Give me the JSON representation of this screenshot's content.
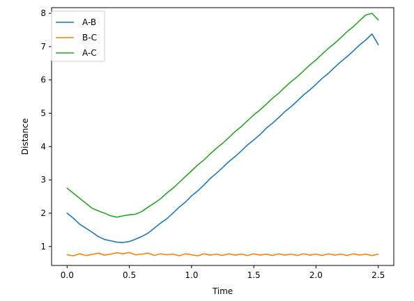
{
  "chart_data": {
    "type": "line",
    "title": "",
    "xlabel": "Time",
    "ylabel": "Distance",
    "xlim": [
      -0.125,
      2.625
    ],
    "ylim": [
      0.43,
      8.17
    ],
    "xticks": [
      0.0,
      0.5,
      1.0,
      1.5,
      2.0,
      2.5
    ],
    "xtick_labels": [
      "0.0",
      "0.5",
      "1.0",
      "1.5",
      "2.0",
      "2.5"
    ],
    "yticks": [
      1,
      2,
      3,
      4,
      5,
      6,
      7,
      8
    ],
    "ytick_labels": [
      "1",
      "2",
      "3",
      "4",
      "5",
      "6",
      "7",
      "8"
    ],
    "grid": false,
    "legend_position": "top-left",
    "series": [
      {
        "name": "A-B",
        "color": "#1f77b4",
        "x": [
          0.0,
          0.05,
          0.1,
          0.15,
          0.2,
          0.25,
          0.3,
          0.35,
          0.4,
          0.45,
          0.5,
          0.55,
          0.6,
          0.65,
          0.7,
          0.75,
          0.8,
          0.85,
          0.9,
          0.95,
          1.0,
          1.05,
          1.1,
          1.15,
          1.2,
          1.25,
          1.3,
          1.35,
          1.4,
          1.45,
          1.5,
          1.55,
          1.6,
          1.65,
          1.7,
          1.75,
          1.8,
          1.85,
          1.9,
          1.95,
          2.0,
          2.05,
          2.1,
          2.15,
          2.2,
          2.25,
          2.3,
          2.35,
          2.4,
          2.45,
          2.5
        ],
        "y": [
          2.0,
          1.85,
          1.67,
          1.55,
          1.43,
          1.3,
          1.21,
          1.17,
          1.13,
          1.12,
          1.15,
          1.22,
          1.3,
          1.4,
          1.55,
          1.7,
          1.83,
          2.0,
          2.18,
          2.33,
          2.52,
          2.67,
          2.85,
          3.04,
          3.2,
          3.37,
          3.55,
          3.7,
          3.87,
          4.05,
          4.2,
          4.36,
          4.55,
          4.7,
          4.87,
          5.05,
          5.2,
          5.37,
          5.55,
          5.7,
          5.87,
          6.05,
          6.2,
          6.38,
          6.55,
          6.7,
          6.87,
          7.05,
          7.2,
          7.38,
          7.06
        ]
      },
      {
        "name": "B-C",
        "color": "#ff7f0e",
        "x": [
          0.0,
          0.05,
          0.1,
          0.15,
          0.2,
          0.25,
          0.3,
          0.35,
          0.4,
          0.45,
          0.5,
          0.55,
          0.6,
          0.65,
          0.7,
          0.75,
          0.8,
          0.85,
          0.9,
          0.95,
          1.0,
          1.05,
          1.1,
          1.15,
          1.2,
          1.25,
          1.3,
          1.35,
          1.4,
          1.45,
          1.5,
          1.55,
          1.6,
          1.65,
          1.7,
          1.75,
          1.8,
          1.85,
          1.9,
          1.95,
          2.0,
          2.05,
          2.1,
          2.15,
          2.2,
          2.25,
          2.3,
          2.35,
          2.4,
          2.45,
          2.5
        ],
        "y": [
          0.75,
          0.72,
          0.78,
          0.73,
          0.76,
          0.8,
          0.74,
          0.77,
          0.81,
          0.78,
          0.82,
          0.75,
          0.77,
          0.8,
          0.73,
          0.78,
          0.75,
          0.77,
          0.72,
          0.78,
          0.75,
          0.72,
          0.78,
          0.74,
          0.77,
          0.73,
          0.78,
          0.74,
          0.77,
          0.73,
          0.78,
          0.74,
          0.77,
          0.73,
          0.78,
          0.74,
          0.77,
          0.73,
          0.78,
          0.74,
          0.77,
          0.73,
          0.78,
          0.74,
          0.77,
          0.73,
          0.78,
          0.74,
          0.77,
          0.73,
          0.77
        ]
      },
      {
        "name": "A-C",
        "color": "#2ca02c",
        "x": [
          0.0,
          0.05,
          0.1,
          0.15,
          0.2,
          0.25,
          0.3,
          0.35,
          0.4,
          0.45,
          0.5,
          0.55,
          0.6,
          0.65,
          0.7,
          0.75,
          0.8,
          0.85,
          0.9,
          0.95,
          1.0,
          1.05,
          1.1,
          1.15,
          1.2,
          1.25,
          1.3,
          1.35,
          1.4,
          1.45,
          1.5,
          1.55,
          1.6,
          1.65,
          1.7,
          1.75,
          1.8,
          1.85,
          1.9,
          1.95,
          2.0,
          2.05,
          2.1,
          2.15,
          2.2,
          2.25,
          2.3,
          2.35,
          2.4,
          2.45,
          2.5
        ],
        "y": [
          2.75,
          2.6,
          2.45,
          2.3,
          2.15,
          2.07,
          2.0,
          1.92,
          1.88,
          1.92,
          1.95,
          1.97,
          2.05,
          2.18,
          2.3,
          2.43,
          2.6,
          2.75,
          2.92,
          3.1,
          3.27,
          3.45,
          3.6,
          3.78,
          3.95,
          4.1,
          4.27,
          4.45,
          4.6,
          4.78,
          4.95,
          5.1,
          5.27,
          5.45,
          5.6,
          5.78,
          5.95,
          6.1,
          6.27,
          6.45,
          6.6,
          6.78,
          6.95,
          7.1,
          7.27,
          7.45,
          7.6,
          7.78,
          7.95,
          8.0,
          7.8
        ]
      }
    ]
  }
}
